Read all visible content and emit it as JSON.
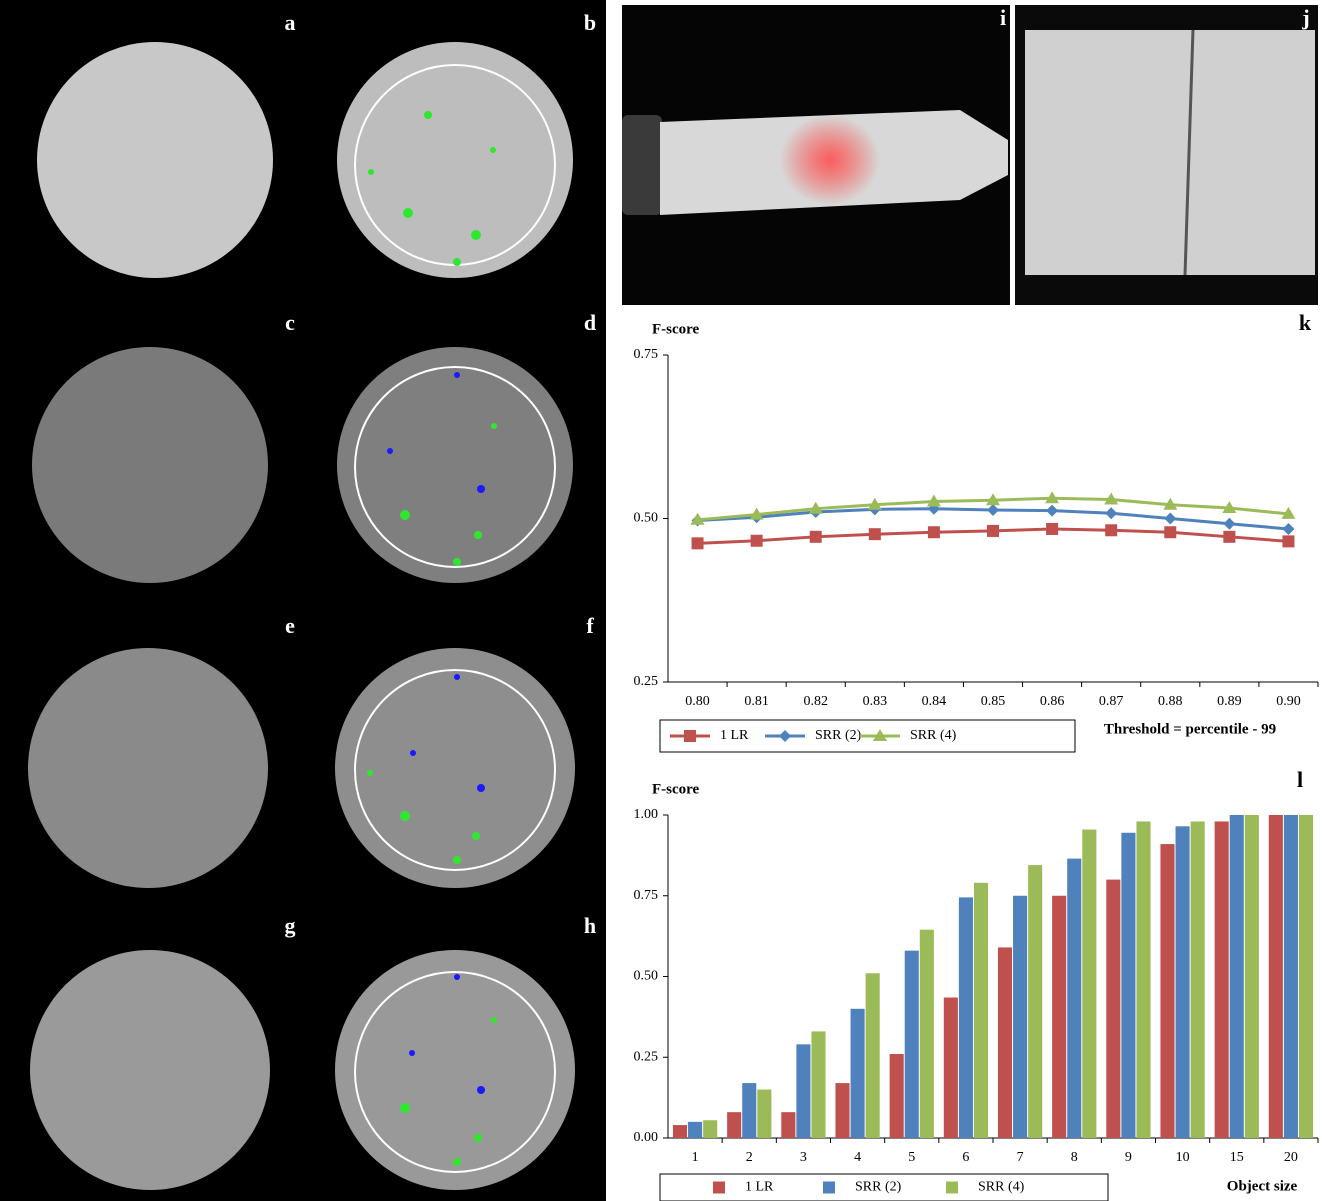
{
  "panel_labels": [
    "a",
    "b",
    "c",
    "d",
    "e",
    "f",
    "g",
    "h",
    "i",
    "j"
  ],
  "chart_data": [
    {
      "type": "line",
      "panel_label": "k",
      "y_label": "F-score",
      "x_label": "Threshold = percentile - 99",
      "categories": [
        "0.80",
        "0.81",
        "0.82",
        "0.83",
        "0.84",
        "0.85",
        "0.86",
        "0.87",
        "0.88",
        "0.89",
        "0.90"
      ],
      "series": [
        {
          "name": "1 LR",
          "color": "#c0504d",
          "marker": "square",
          "values": [
            0.462,
            0.466,
            0.472,
            0.476,
            0.479,
            0.481,
            0.484,
            0.482,
            0.479,
            0.472,
            0.465
          ]
        },
        {
          "name": "SRR (2)",
          "color": "#4f81bd",
          "marker": "diamond",
          "values": [
            0.497,
            0.502,
            0.51,
            0.514,
            0.515,
            0.513,
            0.512,
            0.508,
            0.5,
            0.492,
            0.484
          ]
        },
        {
          "name": "SRR (4)",
          "color": "#9bbb59",
          "marker": "triangle",
          "values": [
            0.498,
            0.506,
            0.515,
            0.521,
            0.526,
            0.528,
            0.531,
            0.529,
            0.521,
            0.516,
            0.507
          ]
        }
      ],
      "ylim": [
        0.25,
        0.75
      ],
      "yticks": [
        {
          "value": 0.25,
          "label": "0.25"
        },
        {
          "value": 0.5,
          "label": "0.50"
        },
        {
          "value": 0.75,
          "label": "0.75"
        }
      ]
    },
    {
      "type": "bar",
      "panel_label": "l",
      "y_label": "F-score",
      "x_label": "Object size",
      "categories": [
        "1",
        "2",
        "3",
        "4",
        "5",
        "6",
        "7",
        "8",
        "9",
        "10",
        "15",
        "20"
      ],
      "series": [
        {
          "name": "1 LR",
          "color": "#c0504d",
          "marker": "square",
          "values": [
            0.04,
            0.08,
            0.08,
            0.17,
            0.26,
            0.435,
            0.59,
            0.75,
            0.8,
            0.91,
            0.98,
            1.0
          ]
        },
        {
          "name": "SRR (2)",
          "color": "#4f81bd",
          "marker": "square",
          "values": [
            0.05,
            0.17,
            0.29,
            0.4,
            0.58,
            0.745,
            0.75,
            0.865,
            0.945,
            0.965,
            1.0,
            1.0
          ]
        },
        {
          "name": "SRR (4)",
          "color": "#9bbb59",
          "marker": "square",
          "values": [
            0.055,
            0.15,
            0.33,
            0.51,
            0.645,
            0.79,
            0.845,
            0.955,
            0.98,
            0.98,
            1.0,
            1.0
          ]
        }
      ],
      "ylim": [
        0,
        1
      ],
      "yticks": [
        {
          "value": 0,
          "label": "0.00"
        },
        {
          "value": 0.25,
          "label": "0.25"
        },
        {
          "value": 0.5,
          "label": "0.50"
        },
        {
          "value": 0.75,
          "label": "0.75"
        },
        {
          "value": 1,
          "label": "1.00"
        }
      ]
    }
  ]
}
